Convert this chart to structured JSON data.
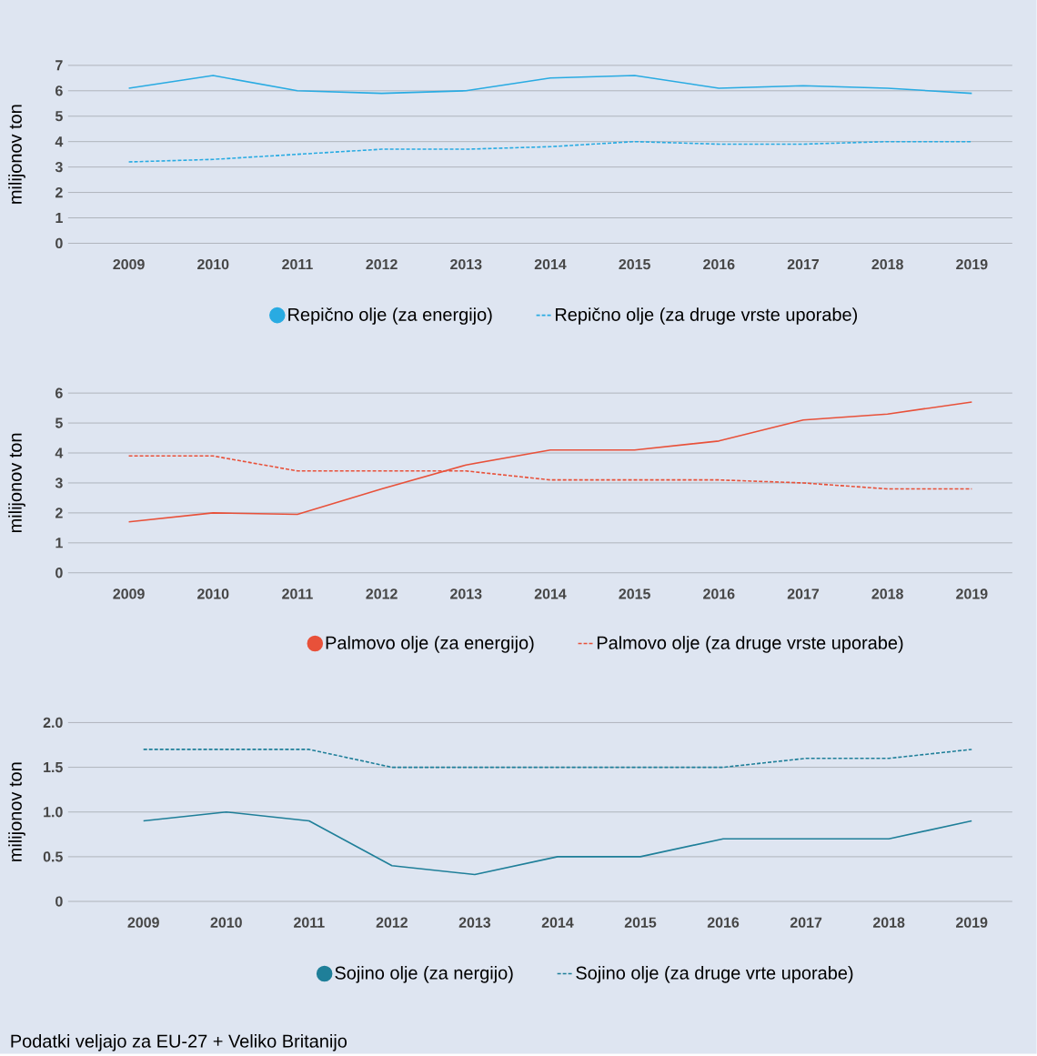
{
  "chart_data": [
    {
      "type": "line",
      "ylabel": "milijonov ton",
      "categories": [
        "2009",
        "2010",
        "2011",
        "2012",
        "2013",
        "2014",
        "2015",
        "2016",
        "2017",
        "2018",
        "2019"
      ],
      "ylim": [
        0,
        7
      ],
      "yticks": [
        0,
        1,
        2,
        3,
        4,
        5,
        6,
        7
      ],
      "grid": "y",
      "legend": "bottom",
      "series": [
        {
          "name": "Repično olje (za energijo)",
          "color": "#29abe2",
          "line_style": "solid",
          "values": [
            6.1,
            6.6,
            6.0,
            5.9,
            6.0,
            6.5,
            6.6,
            6.1,
            6.2,
            6.1,
            5.9
          ]
        },
        {
          "name": "Repično olje (za druge vrste uporabe)",
          "color": "#29abe2",
          "line_style": "dashed",
          "values": [
            3.2,
            3.3,
            3.5,
            3.7,
            3.7,
            3.8,
            4.0,
            3.9,
            3.9,
            4.0,
            4.0
          ]
        }
      ]
    },
    {
      "type": "line",
      "ylabel": "milijonov ton",
      "categories": [
        "2009",
        "2010",
        "2011",
        "2012",
        "2013",
        "2014",
        "2015",
        "2016",
        "2017",
        "2018",
        "2019"
      ],
      "ylim": [
        0,
        6
      ],
      "yticks": [
        0,
        1,
        2,
        3,
        4,
        5,
        6
      ],
      "grid": "y",
      "legend": "bottom",
      "series": [
        {
          "name": "Palmovo olje (za energijo)",
          "color": "#e8513a",
          "line_style": "solid",
          "values": [
            1.7,
            2.0,
            1.95,
            2.8,
            3.6,
            4.1,
            4.1,
            4.4,
            5.1,
            5.3,
            5.7
          ]
        },
        {
          "name": "Palmovo olje (za druge vrste uporabe)",
          "color": "#e8513a",
          "line_style": "dashed",
          "values": [
            3.9,
            3.9,
            3.4,
            3.4,
            3.4,
            3.1,
            3.1,
            3.1,
            3.0,
            2.8,
            2.8
          ]
        }
      ]
    },
    {
      "type": "line",
      "ylabel": "milijonov ton",
      "categories": [
        "2009",
        "2010",
        "2011",
        "2012",
        "2013",
        "2014",
        "2015",
        "2016",
        "2017",
        "2018",
        "2019"
      ],
      "ylim": [
        0,
        2
      ],
      "yticks": [
        0,
        {
          "value": 0.5,
          "label": "0.5"
        },
        {
          "value": 1,
          "label": "1.0"
        },
        {
          "value": 1.5,
          "label": "1.5"
        },
        {
          "value": 2,
          "label": "2.0"
        }
      ],
      "grid": "y",
      "legend": "bottom",
      "series": [
        {
          "name": "Sojino olje (za nergijo)",
          "color": "#1f7f99",
          "line_style": "solid",
          "values": [
            0.9,
            1.0,
            0.9,
            0.4,
            0.3,
            0.5,
            0.5,
            0.7,
            0.7,
            0.7,
            0.9
          ]
        },
        {
          "name": "Sojino olje (za druge vrte uporabe)",
          "color": "#1f7f99",
          "line_style": "dashed",
          "values": [
            1.7,
            1.7,
            1.7,
            1.5,
            1.5,
            1.5,
            1.5,
            1.5,
            1.6,
            1.6,
            1.7
          ]
        }
      ],
      "annotations": [
        "Podatki veljajo za EU-27 + Veliko Britanijo"
      ]
    }
  ]
}
